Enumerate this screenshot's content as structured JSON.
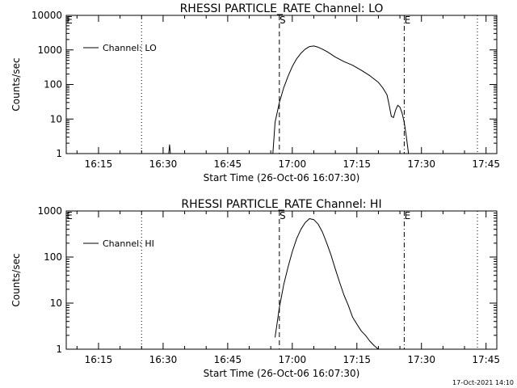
{
  "chart_data": [
    {
      "type": "line",
      "title": "RHESSI PARTICLE_RATE Channel: LO",
      "xlabel": "Start Time (26-Oct-06 16:07:30)",
      "ylabel": "Counts/sec",
      "y_scale": "log",
      "xlim": [
        "16:07:30",
        "17:47:30"
      ],
      "ylim": [
        1,
        10000
      ],
      "x_ticks": [
        "16:15",
        "16:30",
        "16:45",
        "17:00",
        "17:15",
        "17:30",
        "17:45"
      ],
      "y_ticks": [
        "1",
        "10",
        "100",
        "1000",
        "10000"
      ],
      "legend": {
        "position": "top-left",
        "entries": [
          "Channel: LO"
        ]
      },
      "markers": [
        {
          "time": "16:07:30",
          "label": "E",
          "style": "dotted"
        },
        {
          "time": "16:25:00",
          "label": "",
          "style": "dotted"
        },
        {
          "time": "16:57:00",
          "label": "S",
          "style": "dashed"
        },
        {
          "time": "17:26:00",
          "label": "E",
          "style": "dashdot"
        },
        {
          "time": "17:43:00",
          "label": "",
          "style": "dotted"
        }
      ],
      "series": [
        {
          "name": "Channel: LO",
          "x": [
            "16:31:18",
            "16:31:30",
            "16:31:42",
            "16:55:30",
            "16:56:00",
            "16:57:00",
            "16:58:00",
            "16:59:00",
            "17:00:00",
            "17:01:00",
            "17:02:00",
            "17:03:00",
            "17:04:00",
            "17:05:00",
            "17:06:00",
            "17:07:00",
            "17:08:00",
            "17:09:00",
            "17:10:00",
            "17:12:00",
            "17:14:00",
            "17:16:00",
            "17:18:00",
            "17:20:00",
            "17:21:00",
            "17:22:00",
            "17:22:30",
            "17:23:00",
            "17:23:30",
            "17:24:00",
            "17:24:30",
            "17:25:00",
            "17:25:30",
            "17:26:00",
            "17:26:30",
            "17:27:00"
          ],
          "values": [
            1,
            1.8,
            1,
            1,
            8,
            30,
            80,
            170,
            330,
            550,
            800,
            1050,
            1250,
            1300,
            1200,
            1050,
            900,
            750,
            620,
            460,
            360,
            260,
            180,
            115,
            80,
            50,
            25,
            12,
            11,
            18,
            25,
            22,
            15,
            8,
            3,
            1
          ]
        }
      ]
    },
    {
      "type": "line",
      "title": "RHESSI PARTICLE_RATE Channel: HI",
      "xlabel": "Start Time (26-Oct-06 16:07:30)",
      "ylabel": "Counts/sec",
      "y_scale": "log",
      "xlim": [
        "16:07:30",
        "17:47:30"
      ],
      "ylim": [
        1,
        1000
      ],
      "x_ticks": [
        "16:15",
        "16:30",
        "16:45",
        "17:00",
        "17:15",
        "17:30",
        "17:45"
      ],
      "y_ticks": [
        "1",
        "10",
        "100",
        "1000"
      ],
      "legend": {
        "position": "top-left",
        "entries": [
          "Channel: HI"
        ]
      },
      "markers": [
        {
          "time": "16:07:30",
          "label": "E",
          "style": "dotted"
        },
        {
          "time": "16:25:00",
          "label": "",
          "style": "dotted"
        },
        {
          "time": "16:57:00",
          "label": "S",
          "style": "dashed"
        },
        {
          "time": "17:26:00",
          "label": "E",
          "style": "dashdot"
        },
        {
          "time": "17:43:00",
          "label": "",
          "style": "dotted"
        }
      ],
      "series": [
        {
          "name": "Channel: HI",
          "x": [
            "16:56:00",
            "16:57:00",
            "16:58:00",
            "16:59:00",
            "17:00:00",
            "17:01:00",
            "17:02:00",
            "17:03:00",
            "17:04:00",
            "17:05:00",
            "17:06:00",
            "17:07:00",
            "17:08:00",
            "17:09:00",
            "17:10:00",
            "17:11:00",
            "17:12:00",
            "17:13:00",
            "17:14:00",
            "17:15:00",
            "17:16:00",
            "17:17:00",
            "17:18:00",
            "17:19:00",
            "17:20:00"
          ],
          "values": [
            1.8,
            8,
            25,
            60,
            130,
            250,
            400,
            560,
            680,
            650,
            520,
            350,
            200,
            110,
            55,
            28,
            15,
            9,
            5,
            3.5,
            2.5,
            2,
            1.5,
            1.2,
            1
          ]
        }
      ]
    }
  ],
  "footer_timestamp": "17-Oct-2021 14:10"
}
